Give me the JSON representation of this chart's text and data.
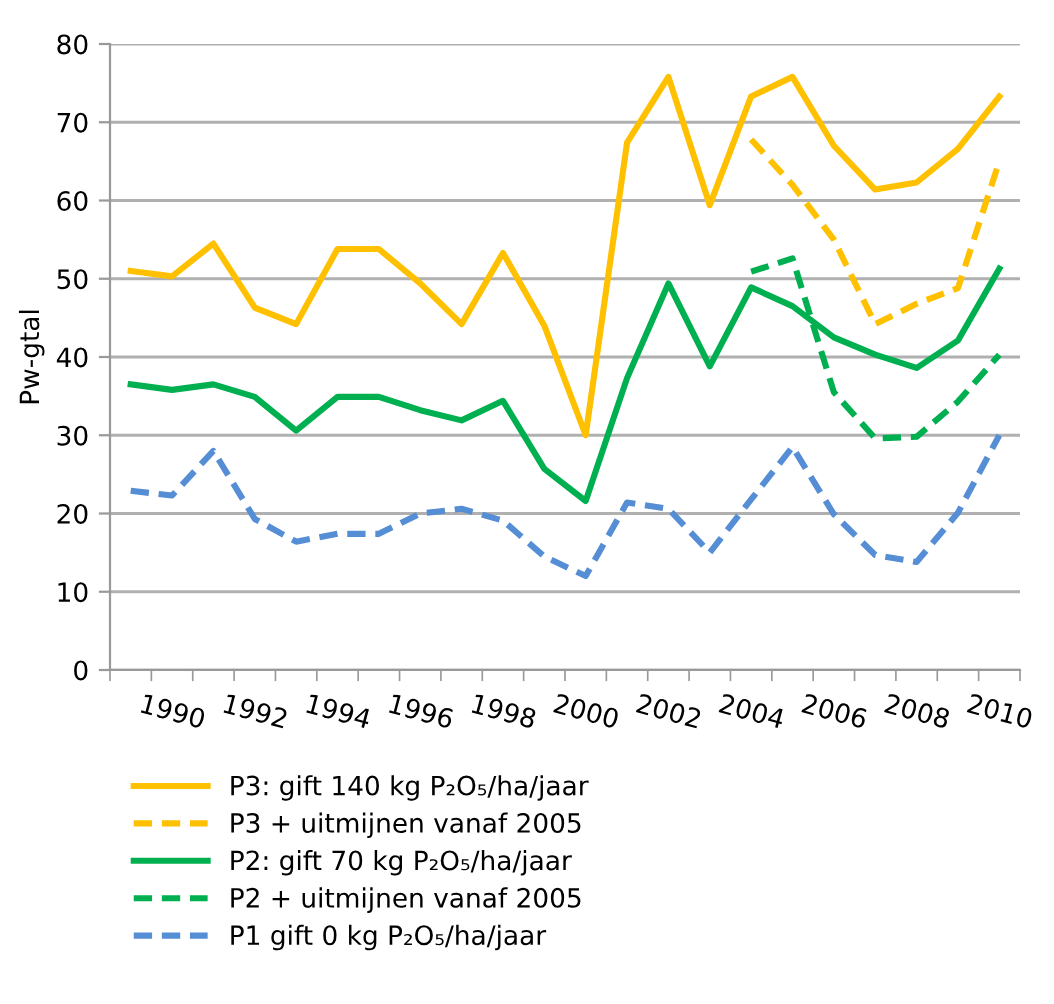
{
  "chart_data": {
    "type": "line",
    "ylabel": "Pw-gtal",
    "categories": [
      null,
      "1990",
      null,
      "1992",
      null,
      "1994",
      null,
      "1996",
      null,
      "1998",
      null,
      "2000",
      null,
      "2002",
      null,
      "2004",
      null,
      "2006",
      null,
      "2008",
      null,
      "2010"
    ],
    "ylim": [
      0,
      80
    ],
    "yticks": [
      0,
      10,
      20,
      30,
      40,
      50,
      60,
      70,
      80
    ],
    "grid": "y",
    "legend": "bottom",
    "marker": "none",
    "series": [
      {
        "name": "P3: gift 140 kg P₂O₅/ha/jaar",
        "color": "#ffc000",
        "line_style": "solid",
        "values": [
          51.0,
          50.3,
          54.5,
          46.3,
          44.2,
          53.8,
          53.8,
          49.4,
          44.2,
          53.3,
          44.0,
          30.0,
          67.4,
          75.8,
          59.4,
          73.3,
          75.8,
          67.0,
          61.4,
          62.3,
          66.6,
          73.3
        ]
      },
      {
        "name": "P3 + uitmijnen vanaf 2005",
        "color": "#ffc000",
        "line_style": "dashed",
        "values": [
          null,
          null,
          null,
          null,
          null,
          null,
          null,
          null,
          null,
          null,
          null,
          null,
          null,
          null,
          null,
          67.8,
          62.0,
          55.0,
          44.2,
          46.8,
          48.8,
          65.0
        ]
      },
      {
        "name": "P2: gift 70 kg P₂O₅/ha/jaar",
        "color": "#00b050",
        "line_style": "solid",
        "values": [
          36.5,
          35.8,
          36.5,
          34.9,
          30.6,
          34.9,
          34.9,
          33.2,
          31.9,
          34.4,
          25.7,
          21.6,
          37.3,
          49.4,
          38.8,
          48.9,
          46.5,
          42.5,
          40.3,
          38.6,
          42.1,
          51.3
        ]
      },
      {
        "name": "P2 + uitmijnen vanaf 2005",
        "color": "#00b050",
        "line_style": "dashed",
        "values": [
          null,
          null,
          null,
          null,
          null,
          null,
          null,
          null,
          null,
          null,
          null,
          null,
          null,
          null,
          null,
          50.9,
          52.6,
          35.5,
          29.6,
          29.8,
          34.3,
          40.3
        ]
      },
      {
        "name": "P1 gift 0 kg P₂O₅/ha/jaar",
        "color": "#558ed5",
        "line_style": "dashed",
        "values": [
          22.9,
          22.3,
          28.0,
          19.3,
          16.4,
          17.4,
          17.4,
          20.0,
          20.6,
          19.1,
          14.5,
          12.0,
          21.4,
          20.6,
          15.0,
          21.8,
          28.5,
          19.9,
          14.7,
          13.8,
          20.1,
          30.0
        ]
      }
    ]
  }
}
